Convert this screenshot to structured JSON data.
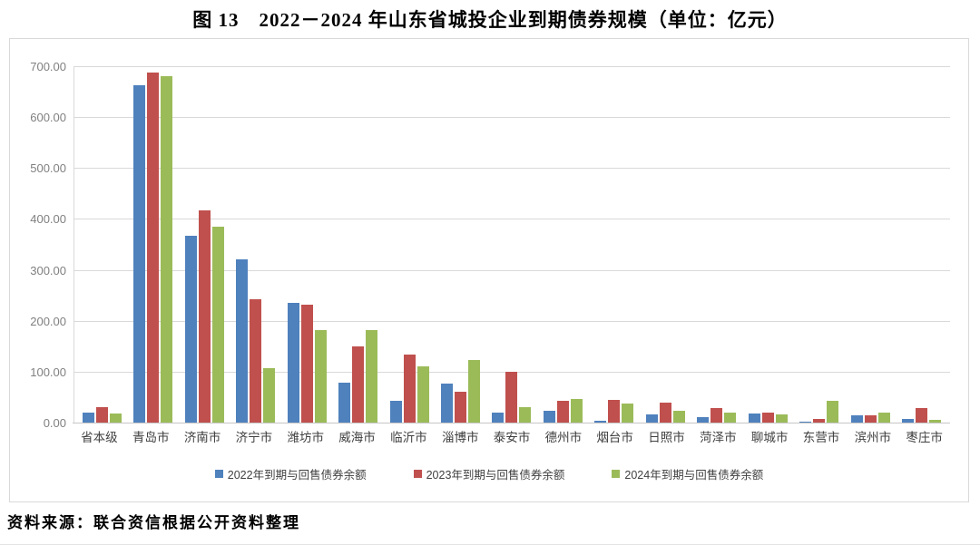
{
  "title": "图 13　2022－2024 年山东省城投企业到期债券规模（单位：亿元）",
  "source_note": "资料来源：联合资信根据公开资料整理",
  "chart_data": {
    "type": "bar",
    "title": "2022－2024 年山东省城投企业到期债券规模",
    "unit": "亿元",
    "xlabel": "",
    "ylabel": "",
    "ylim": [
      0,
      700
    ],
    "ytick_step": 100,
    "yticks": [
      "700.00",
      "600.00",
      "500.00",
      "400.00",
      "300.00",
      "200.00",
      "100.00",
      "0.00"
    ],
    "grid": true,
    "legend_position": "bottom",
    "categories": [
      "省本级",
      "青岛市",
      "济南市",
      "济宁市",
      "潍坊市",
      "威海市",
      "临沂市",
      "淄博市",
      "泰安市",
      "德州市",
      "烟台市",
      "日照市",
      "菏泽市",
      "聊城市",
      "东营市",
      "滨州市",
      "枣庄市"
    ],
    "series": [
      {
        "name": "2022年到期与回售债券余额",
        "color": "#4F81BD",
        "values": [
          20,
          662,
          367,
          320,
          236,
          78,
          43,
          77,
          19,
          24,
          4,
          16,
          10,
          18,
          1,
          14,
          8
        ]
      },
      {
        "name": "2023年到期与回售债券余额",
        "color": "#C0504D",
        "values": [
          30,
          687,
          417,
          242,
          231,
          150,
          133,
          61,
          100,
          43,
          45,
          39,
          29,
          20,
          7,
          15,
          28
        ]
      },
      {
        "name": "2024年到期与回售债券余额",
        "color": "#9BBB59",
        "values": [
          18,
          680,
          385,
          107,
          181,
          181,
          110,
          123,
          30,
          46,
          37,
          23,
          20,
          16,
          43,
          20,
          6
        ]
      }
    ]
  },
  "colors": {
    "grid": "#d9d9d9",
    "axis": "#c6c6c6",
    "y_label": "#808080",
    "x_label": "#404040"
  }
}
